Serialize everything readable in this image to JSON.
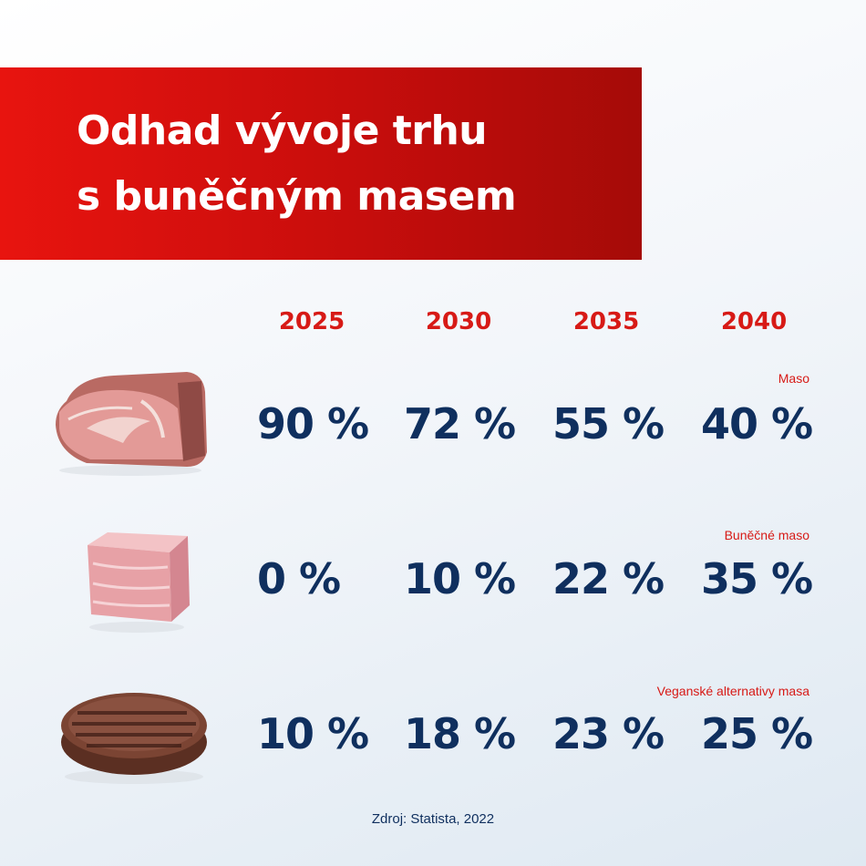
{
  "title_lines": [
    "Odhad vývoje trhu",
    "s buněčným masem"
  ],
  "chart_data": {
    "type": "table",
    "title": "Odhad vývoje trhu s buněčným masem",
    "columns": [
      "2025",
      "2030",
      "2035",
      "2040"
    ],
    "rows": [
      {
        "name": "Maso",
        "icon": "ham-icon",
        "values": [
          "90 %",
          "72 %",
          "55 %",
          "40 %"
        ]
      },
      {
        "name": "Buněčné maso",
        "icon": "cultured-meat-cube-icon",
        "values": [
          "0 %",
          "10 %",
          "22 %",
          "35 %"
        ]
      },
      {
        "name": "Veganské alternativy masa",
        "icon": "burger-patty-icon",
        "values": [
          "10 %",
          "18 %",
          "23 %",
          "25 %"
        ]
      }
    ]
  },
  "source": "Zdroj: Statista, 2022",
  "colors": {
    "accent_red": "#d71a16",
    "banner_red": "#e8140f",
    "value_navy": "#0f2f5e"
  }
}
